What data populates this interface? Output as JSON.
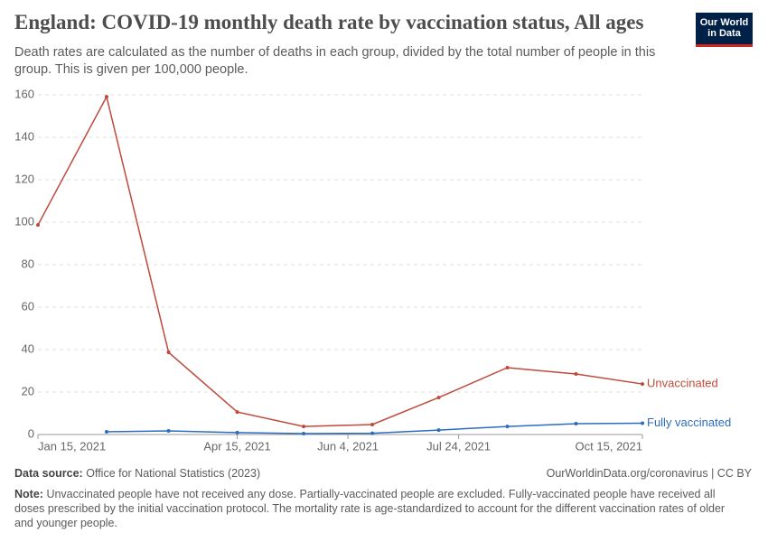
{
  "header": {
    "title": "England: COVID-19 monthly death rate by vaccination status, All ages",
    "subtitle": "Death rates are calculated as the number of deaths in each group, divided by the total number of people in this group. This is given per 100,000 people.",
    "logo": [
      "Our World",
      "in Data"
    ]
  },
  "chart_data": {
    "type": "line",
    "x": [
      "2021-01-15",
      "2021-02-15",
      "2021-03-15",
      "2021-04-15",
      "2021-05-15",
      "2021-06-15",
      "2021-07-15",
      "2021-08-15",
      "2021-09-15",
      "2021-10-15"
    ],
    "series": [
      {
        "name": "Unvaccinated",
        "color": "#be4a3c",
        "values": [
          98.7,
          159.1,
          38.7,
          10.6,
          3.8,
          4.7,
          17.4,
          31.5,
          28.5,
          23.8
        ]
      },
      {
        "name": "Fully vaccinated",
        "color": "#2c6dbf",
        "values": [
          null,
          1.3,
          1.7,
          0.9,
          0.4,
          0.6,
          2.1,
          3.8,
          5.1,
          5.3
        ]
      }
    ],
    "xlim": [
      "2021-01-15",
      "2021-10-15"
    ],
    "xticks": [
      {
        "value": "2021-01-15",
        "label": "Jan 15, 2021"
      },
      {
        "value": "2021-04-15",
        "label": "Apr 15, 2021"
      },
      {
        "value": "2021-06-04",
        "label": "Jun 4, 2021"
      },
      {
        "value": "2021-07-24",
        "label": "Jul 24, 2021"
      },
      {
        "value": "2021-10-15",
        "label": "Oct 15, 2021"
      }
    ],
    "ylim": [
      0,
      160
    ],
    "yticks": [
      0,
      20,
      40,
      60,
      80,
      100,
      120,
      140,
      160
    ],
    "grid": true
  },
  "footer": {
    "source_label": "Data source:",
    "source": "Office for National Statistics (2023)",
    "url": "OurWorldinData.org/coronavirus | CC BY",
    "note_label": "Note:",
    "note": "Unvaccinated people have not received any dose. Partially-vaccinated people are excluded. Fully-vaccinated people have received all doses prescribed by the initial vaccination protocol. The mortality rate is age-standardized to account for the different vaccination rates of older and younger people."
  }
}
